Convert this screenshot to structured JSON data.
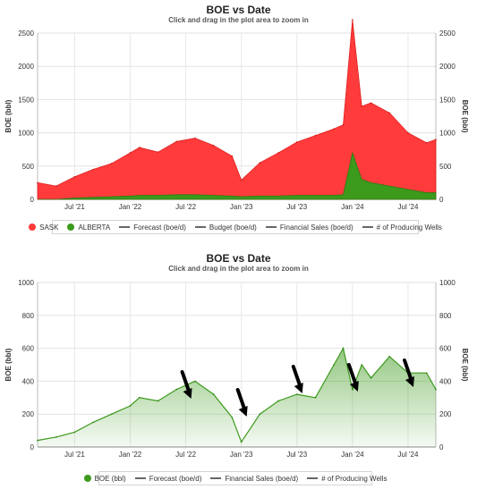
{
  "chart_data": [
    {
      "type": "area",
      "title": "BOE vs Date",
      "subtitle": "Click and drag in the plot area to zoom in",
      "ylabel": "BOE (bbl)",
      "ylabel_right": "BOE (bbl)",
      "ylim": [
        0,
        2500
      ],
      "yticks": [
        "0",
        "500",
        "1000",
        "1500",
        "2000",
        "2500"
      ],
      "xticks": [
        "Jul '21",
        "Jan '22",
        "Jul '22",
        "Jan '23",
        "Jul '23",
        "Jan '24",
        "Jul '24"
      ],
      "stacked": true,
      "x": [
        "2021-03",
        "2021-05",
        "2021-07",
        "2021-09",
        "2021-11",
        "2022-01",
        "2022-02",
        "2022-04",
        "2022-06",
        "2022-08",
        "2022-10",
        "2022-12",
        "2023-01",
        "2023-03",
        "2023-05",
        "2023-07",
        "2023-09",
        "2023-11",
        "2023-12",
        "2024-01",
        "2024-02",
        "2024-03",
        "2024-05",
        "2024-07",
        "2024-09",
        "2024-10"
      ],
      "series": [
        {
          "name": "SASK",
          "color": "#ff3b3b",
          "values": [
            250,
            200,
            320,
            420,
            500,
            650,
            720,
            650,
            800,
            850,
            750,
            600,
            250,
            500,
            650,
            800,
            900,
            1000,
            1050,
            2000,
            1100,
            1200,
            1100,
            850,
            750,
            800
          ]
        },
        {
          "name": "ALBERTA",
          "color": "#3c9a1c",
          "values": [
            0,
            0,
            20,
            30,
            40,
            50,
            60,
            60,
            70,
            70,
            60,
            50,
            40,
            50,
            50,
            60,
            60,
            60,
            70,
            700,
            300,
            250,
            200,
            150,
            100,
            100
          ]
        }
      ],
      "legend_position": "bottom",
      "legend": [
        {
          "label": "SASK",
          "color": "#ff3b3b",
          "symbol": "dot"
        },
        {
          "label": "ALBERTA",
          "color": "#3c9a1c",
          "symbol": "dot"
        },
        {
          "label": "Forecast (boe/d)",
          "symbol": "line"
        },
        {
          "label": "Budget (boe/d)",
          "symbol": "dashed"
        },
        {
          "label": "Financial Sales (boe/d)",
          "symbol": "line"
        },
        {
          "label": "# of Producing Wells",
          "symbol": "line"
        }
      ],
      "grid": true
    },
    {
      "type": "area",
      "title": "BOE vs Date",
      "subtitle": "Click and drag in the plot area to zoom in",
      "ylabel": "BOE (bbl)",
      "ylabel_right": "BOE (bbl)",
      "ylim": [
        0,
        1000
      ],
      "yticks": [
        "0",
        "200",
        "400",
        "600",
        "800",
        "1000"
      ],
      "xticks": [
        "Jul '21",
        "Jan '22",
        "Jul '22",
        "Jan '23",
        "Jul '23",
        "Jan '24",
        "Jul '24"
      ],
      "x": [
        "2021-03",
        "2021-05",
        "2021-07",
        "2021-09",
        "2021-11",
        "2022-01",
        "2022-02",
        "2022-04",
        "2022-06",
        "2022-08",
        "2022-10",
        "2022-12",
        "2023-01",
        "2023-03",
        "2023-05",
        "2023-07",
        "2023-09",
        "2023-11",
        "2023-12",
        "2024-01",
        "2024-02",
        "2024-03",
        "2024-05",
        "2024-07",
        "2024-09",
        "2024-10"
      ],
      "series": [
        {
          "name": "BOE (bbl)",
          "color": "#3c9a1c",
          "values": [
            40,
            60,
            90,
            150,
            200,
            250,
            300,
            280,
            350,
            400,
            320,
            180,
            30,
            200,
            280,
            320,
            300,
            500,
            600,
            350,
            500,
            420,
            550,
            450,
            450,
            350
          ]
        }
      ],
      "annotations": [
        "arrow-2022-07",
        "arrow-2023-01",
        "arrow-2023-07",
        "arrow-2024-01",
        "arrow-2024-07"
      ],
      "legend_position": "bottom",
      "legend": [
        {
          "label": "BOE (bbl)",
          "color": "#3c9a1c",
          "symbol": "dot"
        },
        {
          "label": "Forecast (boe/d)",
          "symbol": "line"
        },
        {
          "label": "Financial Sales (boe/d)",
          "symbol": "line"
        },
        {
          "label": "# of Producing Wells",
          "symbol": "line"
        }
      ],
      "grid": true
    }
  ]
}
